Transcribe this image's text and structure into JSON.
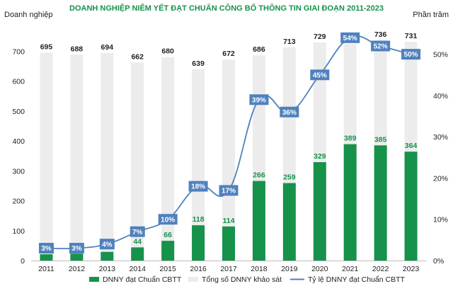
{
  "chart_data": {
    "type": "bar",
    "title": "DOANH NGHIỆP NIÊM YẾT ĐẠT CHUẨN CÔNG BỐ THÔNG TIN GIAI ĐOẠN 2011-2023",
    "ylabel": "Doanh nghiệp",
    "y2label": "Phần trăm",
    "ylim": [
      0,
      800
    ],
    "y2lim": [
      0,
      0.58
    ],
    "yticks": [
      0,
      100,
      200,
      300,
      400,
      500,
      600,
      700
    ],
    "y2ticks": [
      "0%",
      "10%",
      "20%",
      "30%",
      "40%",
      "50%"
    ],
    "categories": [
      "2011",
      "2012",
      "2013",
      "2014",
      "2015",
      "2016",
      "2017",
      "2018",
      "2019",
      "2020",
      "2021",
      "2022",
      "2023"
    ],
    "series": [
      {
        "name": "DNNY đạt Chuẩn CBTT",
        "kind": "bar",
        "color": "#16924a",
        "values": [
          21,
          23,
          29,
          44,
          66,
          118,
          114,
          266,
          259,
          329,
          389,
          385,
          364
        ],
        "labels": [
          "21",
          "23",
          "29",
          "44",
          "66",
          "118",
          "114",
          "266",
          "259",
          "329",
          "389",
          "385",
          "364"
        ]
      },
      {
        "name": "Tổng số DNNY khảo sát",
        "kind": "bar",
        "color": "#ececec",
        "values": [
          695,
          688,
          694,
          662,
          680,
          639,
          672,
          686,
          713,
          729,
          724,
          736,
          731
        ],
        "labels": [
          "695",
          "688",
          "694",
          "662",
          "680",
          "639",
          "672",
          "686",
          "713",
          "729",
          "724",
          "736",
          "731"
        ]
      },
      {
        "name": "Tỷ lệ DNNY đạt Chuẩn CBTT",
        "kind": "line",
        "axis": "right",
        "color": "#4f81bd",
        "values": [
          0.03,
          0.03,
          0.04,
          0.07,
          0.1,
          0.18,
          0.17,
          0.39,
          0.36,
          0.45,
          0.54,
          0.52,
          0.5
        ],
        "labels": [
          "3%",
          "3%",
          "4%",
          "7%",
          "10%",
          "18%",
          "17%",
          "39%",
          "36%",
          "45%",
          "54%",
          "52%",
          "50%"
        ]
      }
    ],
    "legend": "bottom",
    "grid": false
  }
}
